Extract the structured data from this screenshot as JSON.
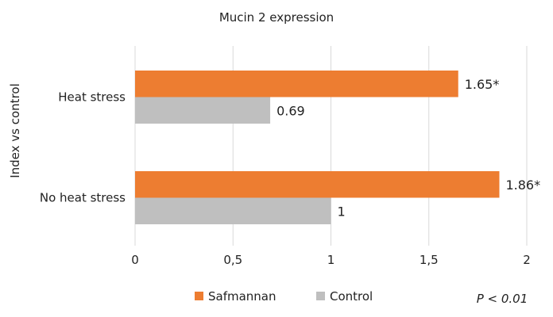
{
  "chart_data": {
    "type": "bar",
    "orientation": "horizontal",
    "title": "Mucin 2 expression",
    "xlabel": "",
    "ylabel": "Index vs control",
    "categories": [
      "Heat stress",
      "No heat stress"
    ],
    "series": [
      {
        "name": "Safmannan",
        "color": "#ED7D31",
        "values": [
          1.65,
          1.86
        ],
        "labels": [
          "1.65*",
          "1.86*"
        ]
      },
      {
        "name": "Control",
        "color": "#BFBFBF",
        "values": [
          0.69,
          1
        ],
        "labels": [
          "0.69",
          "1"
        ]
      }
    ],
    "xlim": [
      0,
      2
    ],
    "xticks": [
      0,
      0.5,
      1,
      1.5,
      2
    ],
    "xtick_labels": [
      "0",
      "0,5",
      "1",
      "1,5",
      "2"
    ],
    "grid": true,
    "legend_position": "bottom",
    "annotation": "P < 0.01"
  }
}
